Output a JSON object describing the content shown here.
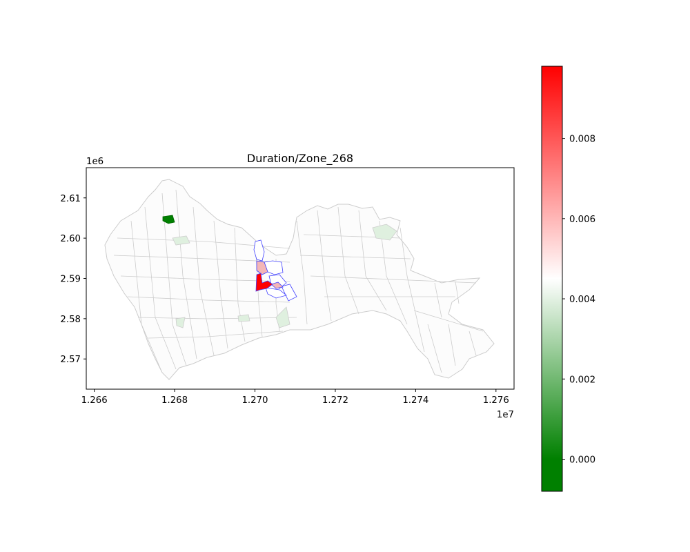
{
  "chart_data": {
    "type": "choropleth",
    "title": "Duration/Zone_268",
    "x_offset_label": "1e7",
    "y_offset_label": "1e6",
    "x_ticks": [
      "1.266",
      "1.268",
      "1.270",
      "1.272",
      "1.274",
      "1.276"
    ],
    "y_ticks": [
      "2.61",
      "2.60",
      "2.59",
      "2.58",
      "2.57"
    ],
    "xlim": [
      1.2658,
      1.27645
    ],
    "ylim": [
      2.5625,
      2.6175
    ],
    "colorbar": {
      "ticks": [
        "0.008",
        "0.006",
        "0.004",
        "0.002",
        "0.000"
      ],
      "tick_values": [
        0.008,
        0.006,
        0.004,
        0.002,
        0.0
      ],
      "vmin": -0.0008,
      "vmax": 0.0098,
      "colors": {
        "low": "#008000",
        "mid": "#ffffff",
        "high": "#ff0000"
      }
    },
    "highlighted_zones": [
      {
        "role": "strongest-positive",
        "color": "#ff0000"
      },
      {
        "role": "moderate-positive",
        "color": "#f4b6b6"
      },
      {
        "role": "strongest-negative",
        "color": "#008000"
      }
    ],
    "colors": {
      "zone_edge": "#cccccc",
      "focus_edge": "#4040ff",
      "faint_green": "#dff0df"
    }
  }
}
